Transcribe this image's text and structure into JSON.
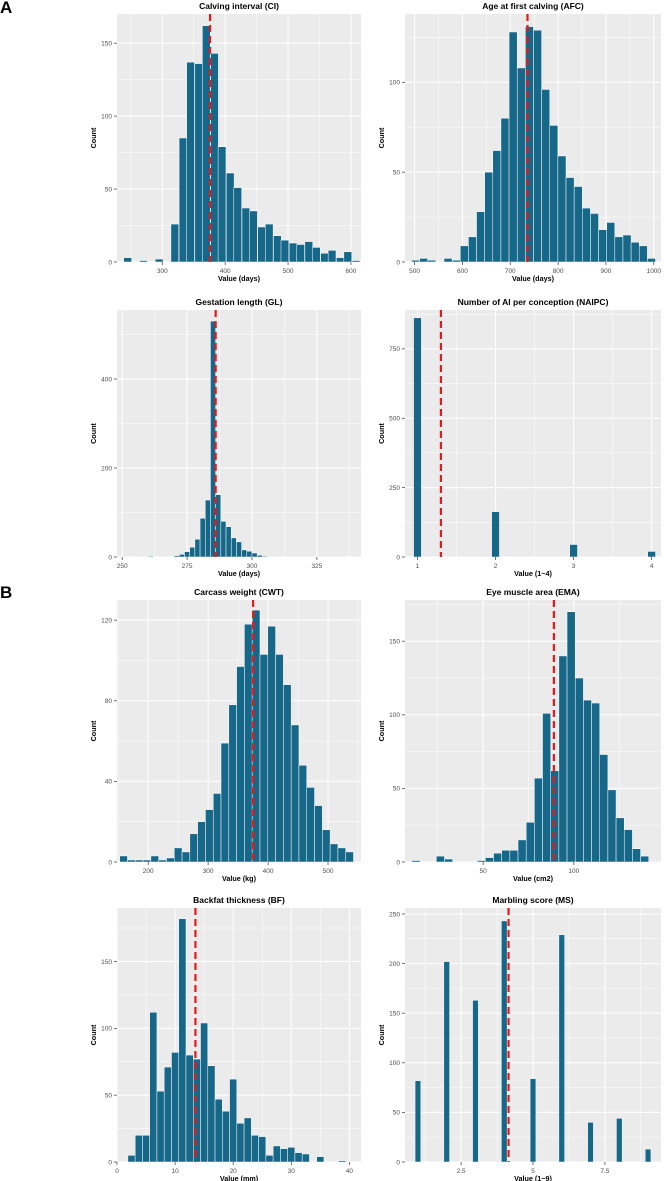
{
  "panel_labels": [
    "A",
    "B"
  ],
  "colors": {
    "bar": "#176789",
    "mean_line": "#e41a1c",
    "panel_bg": "#ebebeb",
    "grid": "#ffffff"
  },
  "chart_data": [
    {
      "type": "bar",
      "title": "Calving interval (CI)",
      "xlabel": "Value (days)",
      "ylabel": "Count",
      "xlim": [
        228,
        616
      ],
      "ylim": [
        0,
        170
      ],
      "binwidth": 12.5,
      "x": [
        245,
        258,
        270,
        283,
        295,
        308,
        320,
        333,
        345,
        358,
        370,
        383,
        395,
        408,
        420,
        433,
        445,
        458,
        470,
        483,
        495,
        508,
        520,
        533,
        545,
        558,
        570,
        583,
        595,
        608
      ],
      "values": [
        3,
        0,
        1,
        0,
        2,
        0,
        26,
        85,
        137,
        136,
        162,
        143,
        79,
        61,
        51,
        37,
        35,
        24,
        26,
        18,
        15,
        13,
        12,
        14,
        10,
        6,
        8,
        3,
        7,
        1
      ],
      "mean": 376,
      "xticks": [
        300,
        400,
        500,
        600
      ],
      "yticks": [
        0,
        50,
        100,
        150
      ]
    },
    {
      "type": "bar",
      "title": "Age at first calving (AFC)",
      "xlabel": "Value (days)",
      "ylabel": "Count",
      "xlim": [
        480,
        1015
      ],
      "ylim": [
        0,
        138
      ],
      "binwidth": 17,
      "x": [
        502,
        519,
        536,
        553,
        570,
        587,
        604,
        621,
        638,
        655,
        672,
        689,
        706,
        723,
        740,
        757,
        774,
        791,
        808,
        825,
        842,
        859,
        876,
        893,
        910,
        927,
        944,
        961,
        978,
        995
      ],
      "values": [
        1,
        2,
        1,
        0,
        2,
        1,
        9,
        14,
        28,
        50,
        62,
        80,
        128,
        108,
        131,
        129,
        96,
        76,
        59,
        47,
        42,
        30,
        27,
        18,
        22,
        14,
        15,
        11,
        9,
        2
      ],
      "mean": 736,
      "xticks": [
        500,
        600,
        700,
        800,
        900,
        1000
      ],
      "yticks": [
        0,
        50,
        100
      ]
    },
    {
      "type": "bar",
      "title": "Gestation length (GL)",
      "xlabel": "Value (days)",
      "ylabel": "Count",
      "xlim": [
        248,
        342
      ],
      "ylim": [
        0,
        555
      ],
      "binwidth": 2,
      "x": [
        251,
        253,
        255,
        257,
        259,
        261,
        263,
        265,
        267,
        269,
        271,
        273,
        275,
        277,
        279,
        281,
        283,
        285,
        287,
        289,
        291,
        293,
        295,
        297,
        299,
        301,
        303,
        305,
        307,
        309,
        311,
        313,
        315,
        317,
        319,
        321,
        323,
        325,
        327,
        329,
        331,
        333,
        335,
        337,
        339
      ],
      "values": [
        0,
        1,
        0,
        0,
        0,
        2,
        0,
        0,
        0,
        0,
        3,
        6,
        12,
        22,
        40,
        87,
        128,
        530,
        140,
        80,
        68,
        43,
        34,
        16,
        13,
        9,
        4,
        2,
        0,
        0,
        0,
        0,
        0,
        0,
        0,
        0,
        0,
        0,
        0,
        0,
        0,
        0,
        0,
        1,
        0
      ],
      "mean": 286,
      "xticks": [
        250,
        275,
        300,
        325
      ],
      "yticks": [
        0,
        200,
        400
      ]
    },
    {
      "type": "bar",
      "title": "Number of AI per conception (NAIPC)",
      "xlabel": "Value (1~4)",
      "ylabel": "Count",
      "xlim": [
        0.84,
        4.12
      ],
      "ylim": [
        0,
        890
      ],
      "binwidth": 0.1,
      "x": [
        1,
        2,
        3,
        4
      ],
      "values": [
        862,
        163,
        45,
        20
      ],
      "mean": 1.3,
      "xticks": [
        1,
        2,
        3,
        4
      ],
      "yticks": [
        0,
        250,
        500,
        750
      ]
    },
    {
      "type": "bar",
      "title": "Carcass weight (CWT)",
      "xlabel": "Value (kg)",
      "ylabel": "Count",
      "xlim": [
        148,
        555
      ],
      "ylim": [
        0,
        130
      ],
      "binwidth": 13,
      "x": [
        159,
        172,
        185,
        198,
        211,
        224,
        237,
        250,
        263,
        276,
        289,
        302,
        315,
        328,
        341,
        354,
        367,
        380,
        393,
        406,
        419,
        432,
        445,
        458,
        471,
        484,
        497,
        510,
        523,
        536
      ],
      "values": [
        3,
        1,
        1,
        1,
        3,
        1,
        2,
        7,
        5,
        14,
        20,
        26,
        34,
        59,
        78,
        97,
        118,
        125,
        103,
        117,
        103,
        88,
        68,
        48,
        37,
        28,
        16,
        9,
        7,
        5
      ],
      "mean": 375,
      "xticks": [
        200,
        300,
        400,
        500
      ],
      "yticks": [
        0,
        40,
        80,
        120
      ]
    },
    {
      "type": "bar",
      "title": "Eye muscle area (EMA)",
      "xlabel": "Value (cm2)",
      "ylabel": "Count",
      "xlim": [
        7,
        148
      ],
      "ylim": [
        0,
        178
      ],
      "binwidth": 4.5,
      "x": [
        13,
        17.5,
        22,
        26.5,
        31,
        35.5,
        40,
        44.5,
        49,
        53.5,
        58,
        62.5,
        67,
        71.5,
        76,
        80.5,
        85,
        89.5,
        94,
        98.5,
        103,
        107.5,
        112,
        116.5,
        121,
        125.5,
        130,
        134.5,
        139
      ],
      "values": [
        1,
        0,
        0,
        4,
        2,
        0,
        0,
        0,
        1,
        3,
        6,
        8,
        8,
        15,
        27,
        57,
        101,
        62,
        140,
        170,
        125,
        110,
        108,
        73,
        49,
        30,
        22,
        9,
        4
      ],
      "mean": 89,
      "xticks": [
        50,
        100
      ],
      "yticks": [
        0,
        50,
        100,
        150
      ]
    },
    {
      "type": "bar",
      "title": "Backfat thickness (BF)",
      "xlabel": "Value (mm)",
      "ylabel": "Count",
      "xlim": [
        0,
        42
      ],
      "ylim": [
        0,
        190
      ],
      "binwidth": 1.25,
      "x": [
        2.5,
        3.75,
        5,
        6.25,
        7.5,
        8.75,
        10,
        11.25,
        12.5,
        13.75,
        15,
        16.25,
        17.5,
        18.75,
        20,
        21.25,
        22.5,
        23.75,
        25,
        26.25,
        27.5,
        28.75,
        30,
        31.25,
        32.5,
        33.75,
        35,
        36.25,
        37.5,
        38.75
      ],
      "values": [
        5,
        20,
        20,
        112,
        53,
        71,
        82,
        182,
        80,
        77,
        104,
        72,
        47,
        38,
        62,
        29,
        33,
        20,
        19,
        5,
        12,
        10,
        11,
        7,
        6,
        0,
        4,
        0,
        0,
        1
      ],
      "mean": 13.5,
      "xticks": [
        0,
        10,
        20,
        30,
        40
      ],
      "yticks": [
        0,
        50,
        100,
        150
      ]
    },
    {
      "type": "bar",
      "title": "Marbling score (MS)",
      "xlabel": "Value (1~9)",
      "ylabel": "Count",
      "xlim": [
        0.55,
        9.45
      ],
      "ylim": [
        0,
        256
      ],
      "binwidth": 0.2,
      "x": [
        1,
        2,
        3,
        4,
        5,
        6,
        7,
        8,
        9
      ],
      "values": [
        82,
        202,
        163,
        243,
        84,
        229,
        40,
        44,
        13
      ],
      "mean": 4.15,
      "xticks": [
        2.5,
        5,
        7.5
      ],
      "yticks": [
        0,
        50,
        100,
        150,
        200,
        250
      ]
    }
  ]
}
